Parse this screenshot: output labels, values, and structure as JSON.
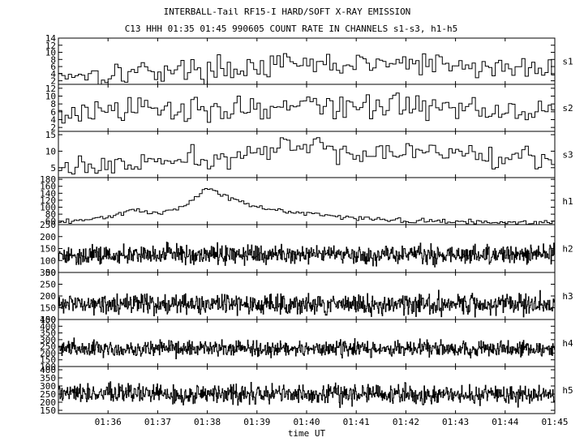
{
  "title": "INTERBALL-Tail RF15-I HARD/SOFT X-RAY EMISSION",
  "subtitle": "C13 HHH 01:35 01:45 990605  COUNT RATE IN CHANNELS s1-s3, h1-h5",
  "chart_data": {
    "type": "line",
    "title": "INTERBALL-Tail RF15-I HARD/SOFT X-RAY EMISSION",
    "subtitle": "C13 HHH 01:35 01:45 990605  COUNT RATE IN CHANNELS s1-s3, h1-h5",
    "xlabel": "time UT",
    "x_range": [
      "01:35",
      "01:45"
    ],
    "x_ticks": [
      "01:36",
      "01:37",
      "01:38",
      "01:39",
      "01:40",
      "01:41",
      "01:42",
      "01:43",
      "01:44",
      "01:45"
    ],
    "grid": false,
    "render": "step",
    "panels": [
      {
        "channel": "s1",
        "ylim": [
          1,
          14
        ],
        "yticks": [
          2,
          4,
          6,
          8,
          10,
          12,
          14
        ],
        "n": 150,
        "series": [
          {
            "x": "01:35",
            "y": 4
          },
          {
            "x": "01:36",
            "y": 4
          },
          {
            "x": "01:37",
            "y": 5
          },
          {
            "x": "01:38",
            "y": 5
          },
          {
            "x": "01:39",
            "y": 6
          },
          {
            "x": "01:40",
            "y": 6.5
          },
          {
            "x": "01:41",
            "y": 6.5
          },
          {
            "x": "01:42",
            "y": 7
          },
          {
            "x": "01:43",
            "y": 6
          },
          {
            "x": "01:44",
            "y": 5.5
          },
          {
            "x": "01:45",
            "y": 5
          }
        ],
        "noise": 2.5
      },
      {
        "channel": "s2",
        "ylim": [
          1,
          13
        ],
        "yticks": [
          2,
          4,
          6,
          8,
          10,
          12
        ],
        "n": 150,
        "series": [
          {
            "x": "01:35",
            "y": 5
          },
          {
            "x": "01:36",
            "y": 6
          },
          {
            "x": "01:37",
            "y": 6.5
          },
          {
            "x": "01:38",
            "y": 7
          },
          {
            "x": "01:39",
            "y": 7
          },
          {
            "x": "01:40",
            "y": 7.5
          },
          {
            "x": "01:41",
            "y": 7.5
          },
          {
            "x": "01:42",
            "y": 7.5
          },
          {
            "x": "01:43",
            "y": 7
          },
          {
            "x": "01:44",
            "y": 7
          },
          {
            "x": "01:45",
            "y": 6.5
          }
        ],
        "noise": 2.6
      },
      {
        "channel": "s3",
        "ylim": [
          2,
          16
        ],
        "yticks": [
          5,
          10,
          15
        ],
        "n": 150,
        "series": [
          {
            "x": "01:35",
            "y": 5
          },
          {
            "x": "01:36",
            "y": 5.5
          },
          {
            "x": "01:37",
            "y": 6.5
          },
          {
            "x": "01:38",
            "y": 7.5
          },
          {
            "x": "01:39",
            "y": 9.5
          },
          {
            "x": "01:40",
            "y": 11.5
          },
          {
            "x": "01:41",
            "y": 10
          },
          {
            "x": "01:42",
            "y": 9.5
          },
          {
            "x": "01:43",
            "y": 9.5
          },
          {
            "x": "01:44",
            "y": 8.5
          },
          {
            "x": "01:45",
            "y": 8
          }
        ],
        "noise": 2.6
      },
      {
        "channel": "h1",
        "ylim": [
          50,
          185
        ],
        "yticks": [
          60,
          80,
          100,
          120,
          140,
          160,
          180
        ],
        "n": 190,
        "series": [
          {
            "x": "01:35",
            "y": 55
          },
          {
            "x": "01:35:30",
            "y": 62
          },
          {
            "x": "01:36",
            "y": 72
          },
          {
            "x": "01:36:30",
            "y": 90
          },
          {
            "x": "01:37",
            "y": 82
          },
          {
            "x": "01:37:30",
            "y": 100
          },
          {
            "x": "01:38",
            "y": 155
          },
          {
            "x": "01:38:30",
            "y": 125
          },
          {
            "x": "01:39",
            "y": 100
          },
          {
            "x": "01:39:30",
            "y": 90
          },
          {
            "x": "01:40",
            "y": 82
          },
          {
            "x": "01:40:30",
            "y": 76
          },
          {
            "x": "01:41",
            "y": 68
          },
          {
            "x": "01:42",
            "y": 62
          },
          {
            "x": "01:43",
            "y": 58
          },
          {
            "x": "01:44",
            "y": 56
          },
          {
            "x": "01:45",
            "y": 55
          }
        ],
        "noise": 5
      },
      {
        "channel": "h2",
        "ylim": [
          50,
          250
        ],
        "yticks": [
          50,
          100,
          150,
          200,
          250
        ],
        "n": 900,
        "series": [
          {
            "x": "01:35",
            "y": 125
          },
          {
            "x": "01:45",
            "y": 125
          }
        ],
        "noise": 30
      },
      {
        "channel": "h3",
        "ylim": [
          100,
          300
        ],
        "yticks": [
          100,
          150,
          200,
          250,
          300
        ],
        "n": 900,
        "series": [
          {
            "x": "01:35",
            "y": 165
          },
          {
            "x": "01:45",
            "y": 165
          }
        ],
        "noise": 32
      },
      {
        "channel": "h4",
        "ylim": [
          100,
          450
        ],
        "yticks": [
          100,
          150,
          200,
          250,
          300,
          350,
          400,
          450
        ],
        "n": 900,
        "series": [
          {
            "x": "01:35",
            "y": 235
          },
          {
            "x": "01:45",
            "y": 235
          }
        ],
        "noise": 45
      },
      {
        "channel": "h5",
        "ylim": [
          130,
          420
        ],
        "yticks": [
          150,
          200,
          250,
          300,
          350,
          400
        ],
        "n": 900,
        "series": [
          {
            "x": "01:35",
            "y": 250
          },
          {
            "x": "01:45",
            "y": 250
          }
        ],
        "noise": 45
      }
    ]
  }
}
